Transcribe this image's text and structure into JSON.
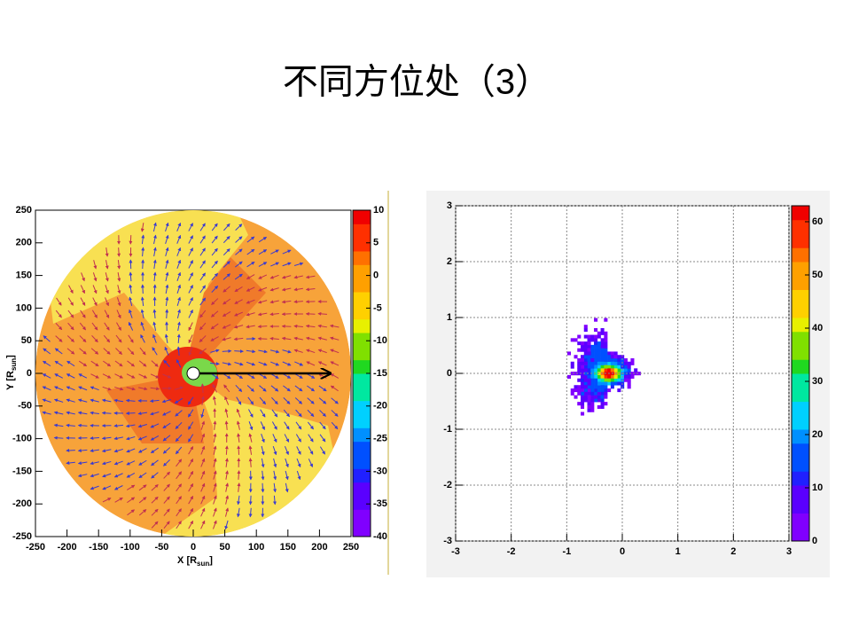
{
  "title": "不同方位处（3）",
  "chart_data": [
    {
      "type": "heatmap",
      "xlabel": [
        "X [R",
        "sun",
        "]"
      ],
      "ylabel": [
        "Y [R",
        "sun",
        "]"
      ],
      "xlim": [
        -250,
        250
      ],
      "xticks": [
        -250,
        -200,
        -150,
        -100,
        -50,
        0,
        50,
        100,
        150,
        200,
        250
      ],
      "ylim": [
        -250,
        250
      ],
      "yticks": [
        -250,
        -200,
        -150,
        -100,
        -50,
        0,
        50,
        100,
        150,
        200,
        250
      ],
      "zlim": [
        -40,
        10
      ],
      "zticks": [
        -40,
        -35,
        -30,
        -25,
        -20,
        -15,
        -10,
        -5,
        0,
        5,
        10
      ],
      "grid": false
    },
    {
      "type": "heatmap",
      "xlim": [
        -3,
        3
      ],
      "xticks": [
        -3,
        -2,
        -1,
        0,
        1,
        2,
        3
      ],
      "ylim": [
        -3,
        3
      ],
      "yticks": [
        -3,
        -2,
        -1,
        0,
        1,
        2,
        3
      ],
      "zlim": [
        0,
        63
      ],
      "zticks": [
        0,
        10,
        20,
        30,
        40,
        50,
        60
      ],
      "grid": true
    }
  ]
}
